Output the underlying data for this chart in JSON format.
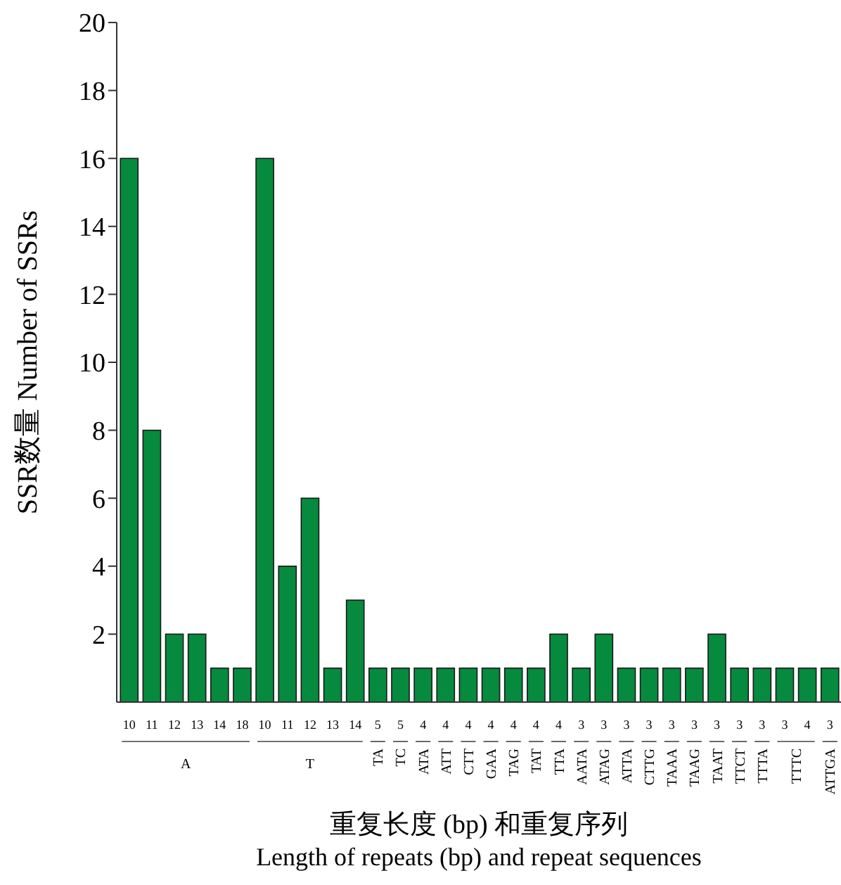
{
  "chart_data": {
    "type": "bar",
    "ylabel": "SSR数量 Number of SSRs",
    "xlabel": "重复长度 (bp) 和重复序列\nLength of repeats (bp) and repeat sequences",
    "categories": [
      "10",
      "11",
      "12",
      "13",
      "14",
      "18",
      "10",
      "11",
      "12",
      "13",
      "14",
      "5",
      "5",
      "4",
      "4",
      "4",
      "4",
      "4",
      "4",
      "4",
      "3",
      "3",
      "3",
      "3",
      "3",
      "3",
      "3",
      "3",
      "3",
      "3",
      "4",
      "3"
    ],
    "values": [
      16,
      8,
      2,
      2,
      1,
      1,
      16,
      4,
      6,
      1,
      3,
      1,
      1,
      1,
      1,
      1,
      1,
      1,
      1,
      2,
      1,
      2,
      1,
      1,
      1,
      1,
      2,
      1,
      1,
      1,
      1,
      1
    ],
    "annotations": [
      "A",
      "T",
      "TA",
      "TC",
      "ATA",
      "ATT",
      "CTT",
      "GAA",
      "TAG",
      "TAT",
      "TTA",
      "AATA",
      "ATAG",
      "ATTA",
      "CTTG",
      "TAAA",
      "TAAG",
      "TAAT",
      "TTCT",
      "TTTA",
      "TTTC",
      "ATTGA"
    ],
    "color": "#068a3e",
    "ylim": [
      0,
      20
    ],
    "yticks": [
      2,
      4,
      6,
      8,
      10,
      12,
      14,
      16,
      18,
      20
    ],
    "grid": false
  }
}
